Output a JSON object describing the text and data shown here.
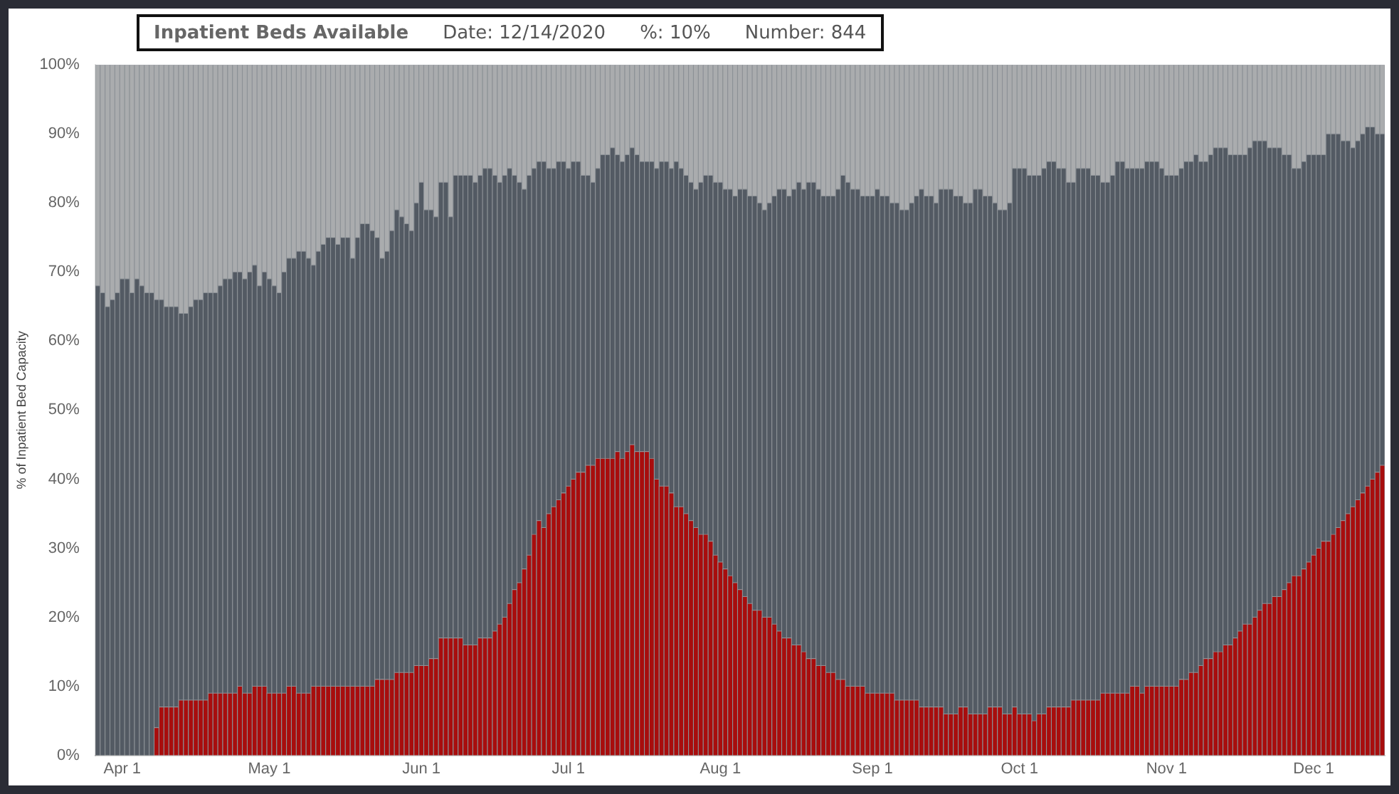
{
  "chart_data": {
    "type": "bar",
    "stacked": true,
    "ylabel": "% of Inpatient Bed Capacity",
    "annotations": [
      "Inpatient Beds Available",
      "Date: 12/14/2020",
      "%: 10%",
      "Number: 844"
    ],
    "ylim": [
      0,
      100
    ],
    "yticks": [
      {
        "value": 0,
        "label": "0%"
      },
      {
        "value": 10,
        "label": "10%"
      },
      {
        "value": 20,
        "label": "20%"
      },
      {
        "value": 30,
        "label": "30%"
      },
      {
        "value": 40,
        "label": "40%"
      },
      {
        "value": 50,
        "label": "50%"
      },
      {
        "value": 60,
        "label": "60%"
      },
      {
        "value": 70,
        "label": "70%"
      },
      {
        "value": 80,
        "label": "80%"
      },
      {
        "value": 90,
        "label": "90%"
      },
      {
        "value": 100,
        "label": "100%"
      }
    ],
    "categories": [
      null,
      null,
      null,
      null,
      null,
      "Apr 1",
      null,
      null,
      null,
      null,
      null,
      null,
      null,
      null,
      null,
      null,
      null,
      null,
      null,
      null,
      null,
      null,
      null,
      null,
      null,
      null,
      null,
      null,
      null,
      null,
      null,
      null,
      null,
      null,
      null,
      "May 1",
      null,
      null,
      null,
      null,
      null,
      null,
      null,
      null,
      null,
      null,
      null,
      null,
      null,
      null,
      null,
      null,
      null,
      null,
      null,
      null,
      null,
      null,
      null,
      null,
      null,
      null,
      null,
      null,
      null,
      null,
      "Jun 1",
      null,
      null,
      null,
      null,
      null,
      null,
      null,
      null,
      null,
      null,
      null,
      null,
      null,
      null,
      null,
      null,
      null,
      null,
      null,
      null,
      null,
      null,
      null,
      null,
      null,
      null,
      null,
      null,
      null,
      "Jul 1",
      null,
      null,
      null,
      null,
      null,
      null,
      null,
      null,
      null,
      null,
      null,
      null,
      null,
      null,
      null,
      null,
      null,
      null,
      null,
      null,
      null,
      null,
      null,
      null,
      null,
      null,
      null,
      null,
      null,
      null,
      "Aug 1",
      null,
      null,
      null,
      null,
      null,
      null,
      null,
      null,
      null,
      null,
      null,
      null,
      null,
      null,
      null,
      null,
      null,
      null,
      null,
      null,
      null,
      null,
      null,
      null,
      null,
      null,
      null,
      null,
      null,
      null,
      "Sep 1",
      null,
      null,
      null,
      null,
      null,
      null,
      null,
      null,
      null,
      null,
      null,
      null,
      null,
      null,
      null,
      null,
      null,
      null,
      null,
      null,
      null,
      null,
      null,
      null,
      null,
      null,
      null,
      null,
      null,
      "Oct 1",
      null,
      null,
      null,
      null,
      null,
      null,
      null,
      null,
      null,
      null,
      null,
      null,
      null,
      null,
      null,
      null,
      null,
      null,
      null,
      null,
      null,
      null,
      null,
      null,
      null,
      null,
      null,
      null,
      null,
      "Nov 1",
      null,
      null,
      null,
      null,
      null,
      null,
      null,
      null,
      null,
      null,
      null,
      null,
      null,
      null,
      null,
      null,
      null,
      null,
      null,
      null,
      null,
      null,
      null,
      null,
      null,
      null,
      null,
      null,
      null,
      "Dec 1",
      null,
      null,
      null,
      null,
      null,
      null,
      null,
      null,
      null,
      null,
      null,
      null,
      null,
      null
    ],
    "series": [
      {
        "color": "#a80d0d",
        "values": [
          null,
          null,
          null,
          null,
          null,
          null,
          null,
          null,
          null,
          null,
          null,
          null,
          4,
          7,
          7,
          7,
          7,
          8,
          8,
          8,
          8,
          8,
          8,
          9,
          9,
          9,
          9,
          9,
          9,
          10,
          9,
          9,
          10,
          10,
          10,
          9,
          9,
          9,
          9,
          10,
          10,
          9,
          9,
          9,
          10,
          10,
          10,
          10,
          10,
          10,
          10,
          10,
          10,
          10,
          10,
          10,
          10,
          11,
          11,
          11,
          11,
          12,
          12,
          12,
          12,
          13,
          13,
          13,
          14,
          14,
          17,
          17,
          17,
          17,
          17,
          16,
          16,
          16,
          17,
          17,
          17,
          18,
          19,
          20,
          22,
          24,
          25,
          27,
          29,
          32,
          34,
          33,
          35,
          36,
          37,
          38,
          39,
          40,
          41,
          41,
          42,
          42,
          43,
          43,
          43,
          43,
          44,
          43,
          44,
          45,
          44,
          44,
          44,
          43,
          40,
          39,
          39,
          38,
          36,
          36,
          35,
          34,
          33,
          32,
          32,
          31,
          29,
          28,
          27,
          26,
          25,
          24,
          23,
          22,
          21,
          21,
          20,
          20,
          19,
          18,
          17,
          17,
          16,
          16,
          15,
          14,
          14,
          13,
          13,
          12,
          12,
          11,
          11,
          10,
          10,
          10,
          10,
          9,
          9,
          9,
          9,
          9,
          9,
          8,
          8,
          8,
          8,
          8,
          7,
          7,
          7,
          7,
          7,
          6,
          6,
          6,
          7,
          7,
          6,
          6,
          6,
          6,
          7,
          7,
          7,
          6,
          6,
          7,
          6,
          6,
          6,
          5,
          6,
          6,
          7,
          7,
          7,
          7,
          7,
          8,
          8,
          8,
          8,
          8,
          8,
          9,
          9,
          9,
          9,
          9,
          9,
          10,
          10,
          9,
          10,
          10,
          10,
          10,
          10,
          10,
          10,
          11,
          11,
          12,
          12,
          13,
          14,
          14,
          15,
          15,
          16,
          16,
          17,
          18,
          19,
          19,
          20,
          21,
          22,
          22,
          23,
          23,
          24,
          25,
          26,
          26,
          27,
          28,
          29,
          30,
          31,
          31,
          32,
          33,
          34,
          35,
          36,
          37,
          38,
          39,
          40,
          41,
          42
        ]
      },
      {
        "color": "#535a63",
        "values": [
          68,
          67,
          65,
          66,
          67,
          69,
          69,
          67,
          69,
          68,
          67,
          67,
          62,
          59,
          58,
          58,
          58,
          56,
          56,
          57,
          58,
          58,
          59,
          58,
          58,
          59,
          60,
          60,
          61,
          60,
          60,
          61,
          61,
          58,
          60,
          60,
          59,
          58,
          61,
          62,
          62,
          64,
          64,
          63,
          61,
          63,
          64,
          65,
          65,
          64,
          65,
          65,
          62,
          65,
          67,
          67,
          66,
          64,
          61,
          62,
          65,
          67,
          66,
          65,
          64,
          67,
          70,
          66,
          65,
          64,
          66,
          66,
          61,
          67,
          67,
          68,
          68,
          67,
          67,
          68,
          68,
          66,
          64,
          64,
          63,
          60,
          58,
          55,
          55,
          53,
          52,
          53,
          50,
          49,
          49,
          48,
          46,
          46,
          45,
          43,
          42,
          41,
          42,
          44,
          44,
          45,
          43,
          43,
          43,
          43,
          43,
          42,
          42,
          43,
          45,
          47,
          47,
          47,
          50,
          49,
          49,
          49,
          49,
          51,
          52,
          53,
          54,
          55,
          55,
          56,
          56,
          58,
          59,
          59,
          60,
          59,
          59,
          60,
          62,
          64,
          65,
          64,
          66,
          67,
          67,
          69,
          69,
          69,
          68,
          69,
          69,
          71,
          73,
          73,
          72,
          72,
          71,
          72,
          72,
          73,
          72,
          72,
          71,
          72,
          71,
          71,
          72,
          73,
          75,
          74,
          74,
          73,
          75,
          76,
          76,
          75,
          74,
          73,
          74,
          76,
          76,
          75,
          74,
          73,
          72,
          73,
          74,
          78,
          79,
          79,
          78,
          79,
          78,
          79,
          79,
          79,
          78,
          78,
          76,
          75,
          77,
          77,
          77,
          76,
          76,
          74,
          74,
          75,
          77,
          77,
          76,
          75,
          75,
          76,
          76,
          76,
          76,
          75,
          74,
          74,
          74,
          74,
          75,
          74,
          75,
          73,
          72,
          73,
          73,
          73,
          72,
          71,
          70,
          69,
          68,
          69,
          69,
          68,
          67,
          66,
          65,
          65,
          63,
          62,
          59,
          59,
          59,
          59,
          58,
          57,
          56,
          59,
          58,
          57,
          55,
          54,
          52,
          52,
          52,
          52,
          51,
          49,
          48
        ]
      },
      {
        "color": "#aaacae",
        "values": [
          32,
          33,
          35,
          34,
          33,
          31,
          31,
          33,
          31,
          32,
          33,
          33,
          34,
          34,
          35,
          35,
          35,
          36,
          36,
          35,
          34,
          34,
          33,
          33,
          33,
          32,
          31,
          31,
          30,
          30,
          31,
          30,
          29,
          32,
          30,
          31,
          32,
          33,
          30,
          28,
          28,
          27,
          27,
          28,
          29,
          27,
          26,
          25,
          25,
          26,
          25,
          25,
          28,
          25,
          23,
          23,
          24,
          25,
          28,
          27,
          24,
          21,
          22,
          23,
          24,
          20,
          17,
          21,
          21,
          22,
          17,
          17,
          22,
          16,
          16,
          16,
          16,
          17,
          16,
          15,
          15,
          16,
          17,
          16,
          15,
          16,
          17,
          18,
          16,
          15,
          14,
          14,
          15,
          15,
          14,
          14,
          15,
          14,
          14,
          16,
          16,
          17,
          15,
          13,
          13,
          12,
          13,
          14,
          13,
          12,
          13,
          14,
          14,
          14,
          15,
          14,
          14,
          15,
          14,
          15,
          16,
          17,
          18,
          17,
          16,
          16,
          17,
          17,
          18,
          18,
          19,
          18,
          18,
          19,
          19,
          20,
          21,
          20,
          19,
          18,
          18,
          19,
          18,
          17,
          18,
          17,
          17,
          18,
          19,
          19,
          19,
          18,
          16,
          17,
          18,
          18,
          19,
          19,
          19,
          18,
          19,
          19,
          20,
          20,
          21,
          21,
          20,
          19,
          18,
          19,
          19,
          20,
          18,
          18,
          18,
          19,
          19,
          20,
          20,
          18,
          18,
          19,
          19,
          20,
          21,
          21,
          20,
          15,
          15,
          15,
          16,
          16,
          16,
          15,
          14,
          14,
          15,
          15,
          17,
          17,
          15,
          15,
          15,
          16,
          16,
          17,
          17,
          16,
          14,
          14,
          15,
          15,
          15,
          15,
          14,
          14,
          14,
          15,
          16,
          16,
          16,
          15,
          14,
          14,
          13,
          14,
          14,
          13,
          12,
          12,
          12,
          13,
          13,
          13,
          13,
          12,
          11,
          11,
          11,
          12,
          12,
          12,
          13,
          13,
          15,
          15,
          14,
          13,
          13,
          13,
          13,
          10,
          10,
          10,
          11,
          11,
          12,
          11,
          10,
          9,
          9,
          10,
          10
        ]
      }
    ]
  }
}
